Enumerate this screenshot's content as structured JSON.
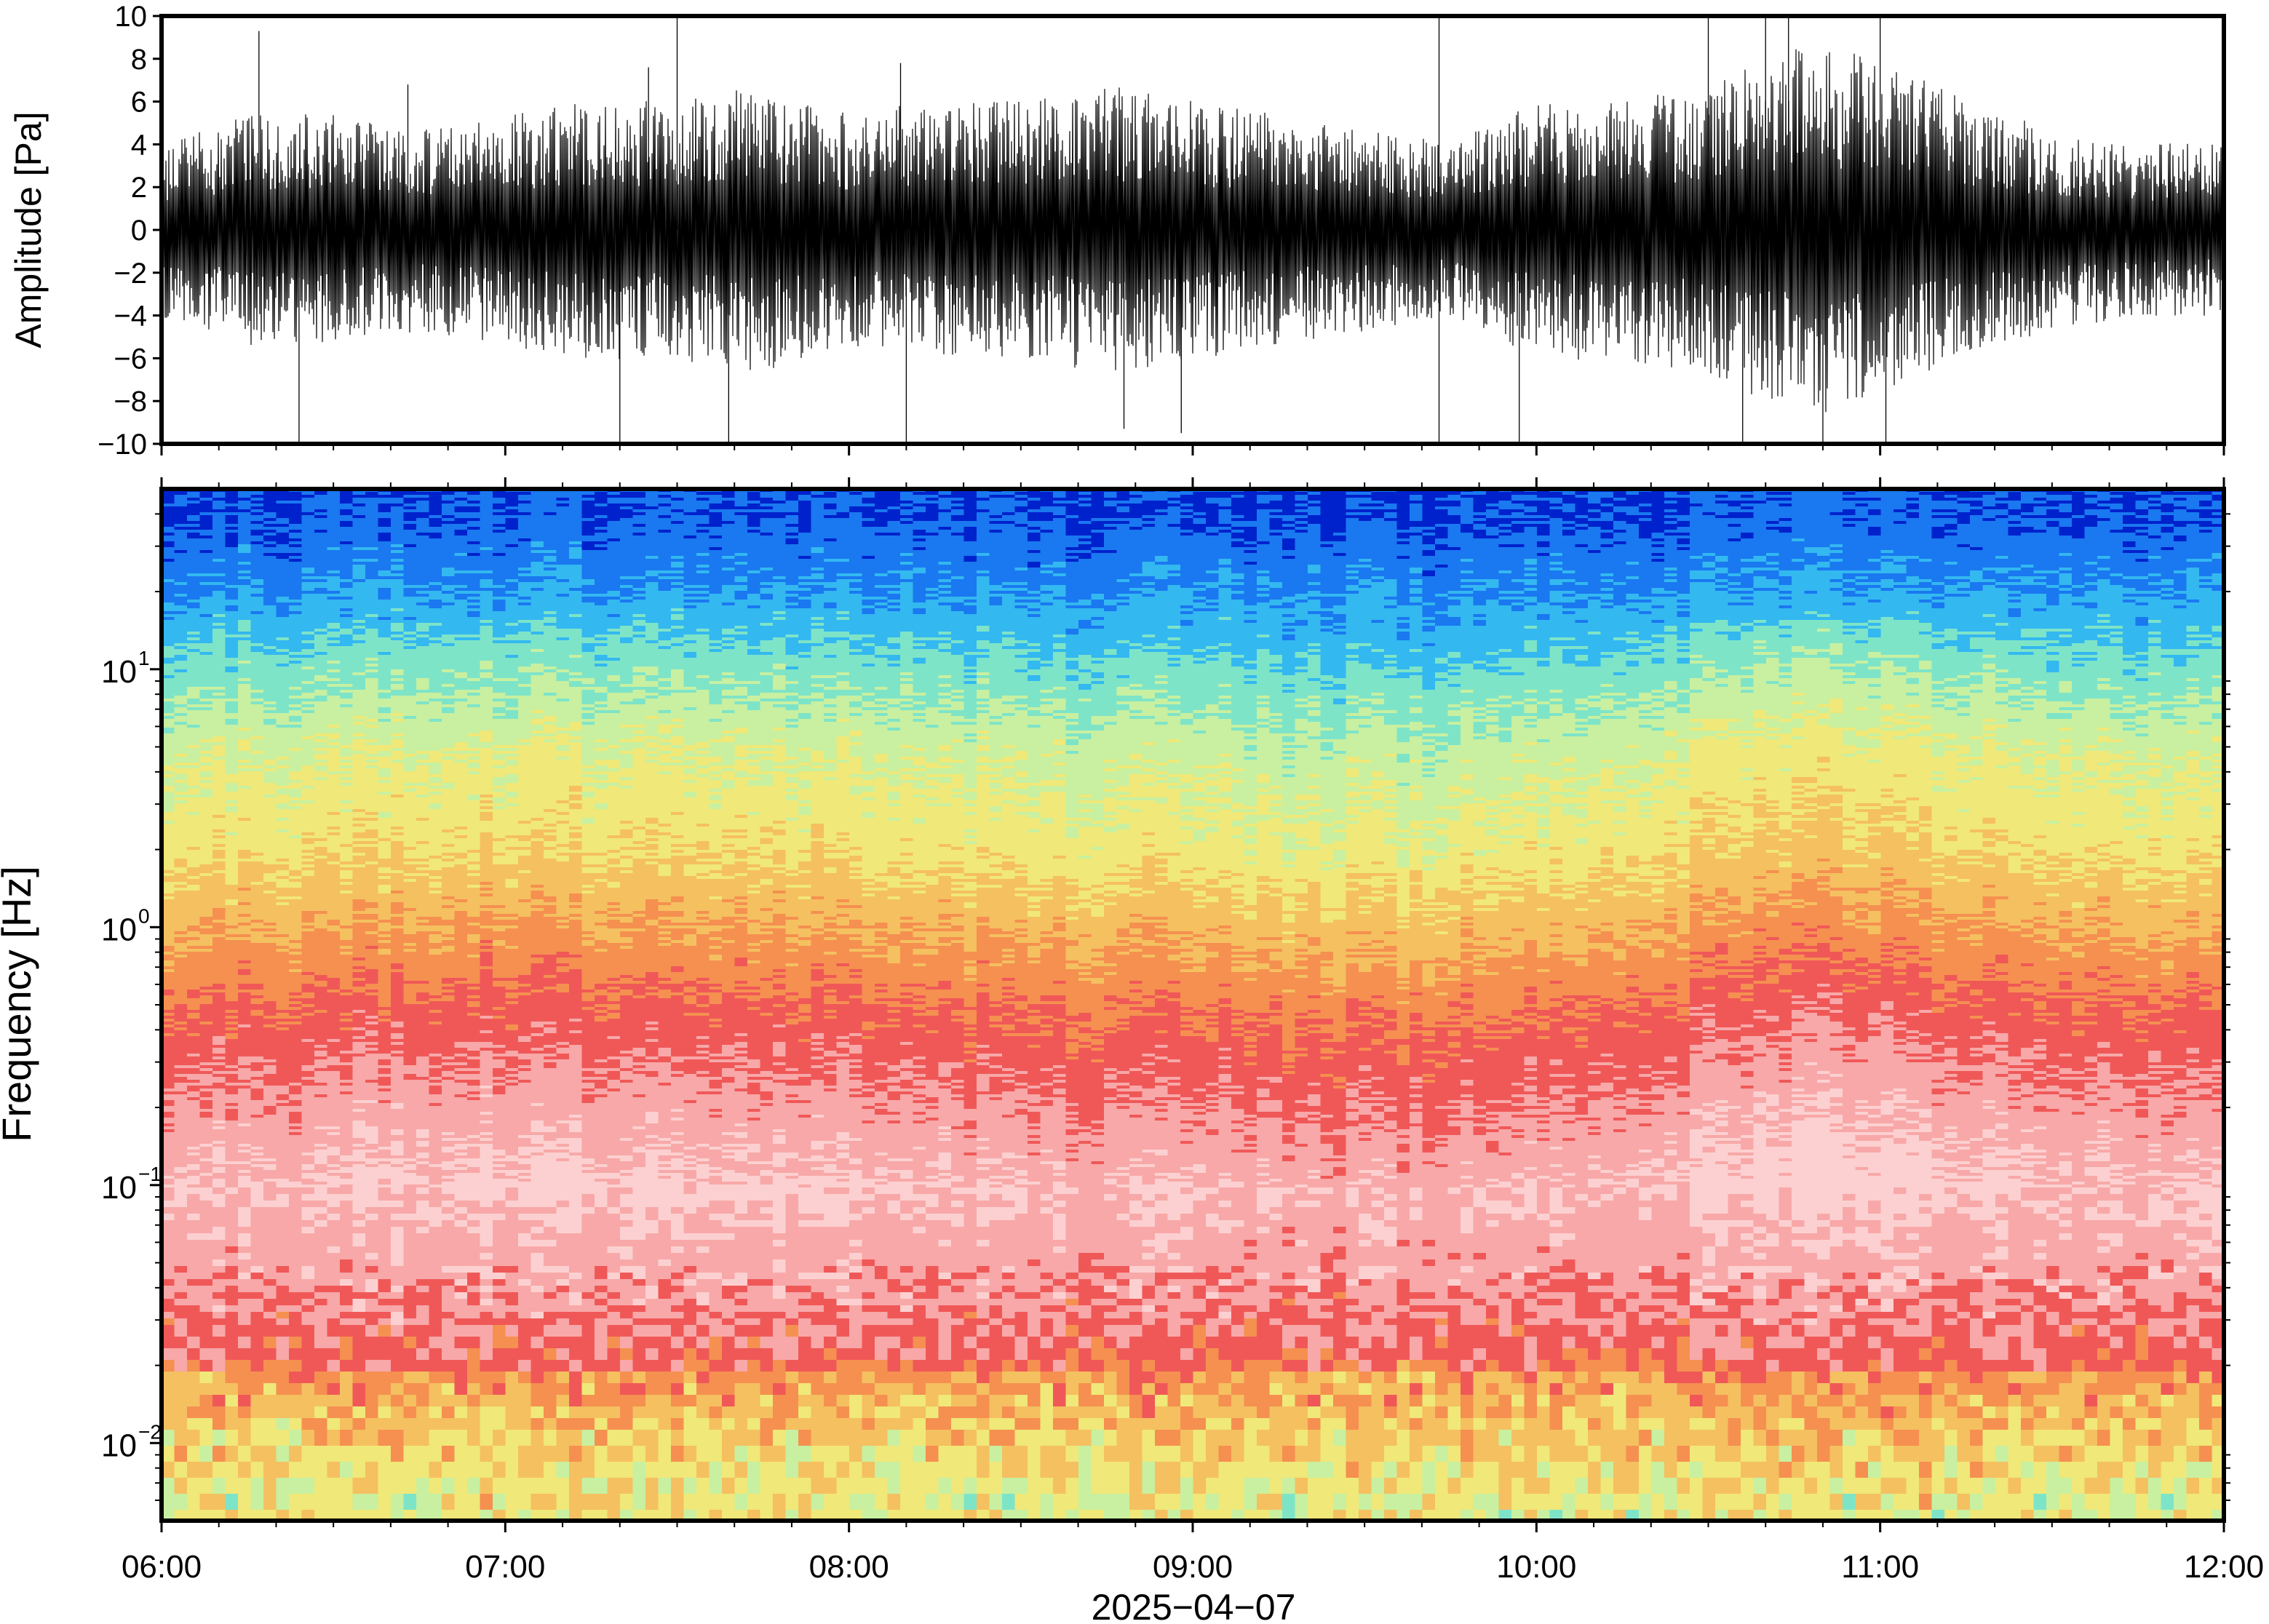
{
  "chart_data": [
    {
      "type": "line",
      "panel": "waveform",
      "ylabel": "Amplitude [Pa]",
      "xlim": [
        "06:00",
        "12:00"
      ],
      "ylim": [
        -10,
        10
      ],
      "yticks": [
        "10",
        "8",
        "6",
        "4",
        "2",
        "0",
        "−2",
        "−4",
        "−6",
        "−8",
        "−10"
      ],
      "envelope": {
        "x": [
          "06:00",
          "06:15",
          "06:30",
          "06:45",
          "07:00",
          "07:15",
          "07:30",
          "07:45",
          "08:00",
          "08:15",
          "08:30",
          "08:45",
          "09:00",
          "09:15",
          "09:30",
          "09:45",
          "10:00",
          "10:15",
          "10:30",
          "10:45",
          "11:00",
          "11:15",
          "11:30",
          "11:45",
          "12:00"
        ],
        "amplitude": [
          3.0,
          4.0,
          4.0,
          3.5,
          4.0,
          4.5,
          4.5,
          5.0,
          4.0,
          4.5,
          4.5,
          5.0,
          4.5,
          4.0,
          3.5,
          3.0,
          4.5,
          4.5,
          5.0,
          6.5,
          6.0,
          4.5,
          3.5,
          3.0,
          3.0
        ]
      },
      "spikes": [
        {
          "x": "06:17",
          "y": 9.3
        },
        {
          "x": "06:24",
          "y": -10
        },
        {
          "x": "06:43",
          "y": 6.8
        },
        {
          "x": "07:20",
          "y": -10
        },
        {
          "x": "07:25",
          "y": 7.6
        },
        {
          "x": "07:30",
          "y": 10
        },
        {
          "x": "07:39",
          "y": -10
        },
        {
          "x": "08:09",
          "y": 7.8
        },
        {
          "x": "08:10",
          "y": -10
        },
        {
          "x": "08:48",
          "y": -9.3
        },
        {
          "x": "08:58",
          "y": -9.5
        },
        {
          "x": "09:43",
          "y": 10
        },
        {
          "x": "09:43",
          "y": -10
        },
        {
          "x": "09:57",
          "y": -10
        },
        {
          "x": "10:30",
          "y": 10
        },
        {
          "x": "10:36",
          "y": -10
        },
        {
          "x": "10:40",
          "y": 10
        },
        {
          "x": "10:44",
          "y": 10
        },
        {
          "x": "10:50",
          "y": -10
        },
        {
          "x": "11:00",
          "y": 10
        },
        {
          "x": "11:01",
          "y": -10
        }
      ]
    },
    {
      "type": "heatmap",
      "panel": "spectrogram",
      "ylabel": "Frequency [Hz]",
      "xlabel": "2025−04−07",
      "xticks": [
        "06:00",
        "07:00",
        "08:00",
        "09:00",
        "10:00",
        "11:00",
        "12:00"
      ],
      "yscale": "log",
      "ylim": [
        0.005,
        50
      ],
      "yticks": [
        {
          "base": "10",
          "exp": "1"
        },
        {
          "base": "10",
          "exp": "0"
        },
        {
          "base": "10",
          "exp": "−1"
        },
        {
          "base": "10",
          "exp": "−2"
        }
      ],
      "colormap": [
        "#0022cc",
        "#1a78f0",
        "#33b8f0",
        "#7ee4c8",
        "#c8f0a0",
        "#f0e878",
        "#f5c060",
        "#f59050",
        "#f05858",
        "#f8a8a8",
        "#fcd0d0"
      ],
      "spectral_profile_hz": [
        40,
        20,
        10,
        5,
        2,
        1,
        0.5,
        0.3,
        0.1,
        0.05,
        0.025,
        0.012,
        0.006
      ],
      "spectral_profile_level": [
        0.5,
        1.5,
        3.0,
        4.3,
        5.2,
        6.4,
        7.6,
        8.3,
        9.6,
        9.0,
        8.2,
        6.5,
        5.5
      ],
      "band_shift": {
        "x": [
          "06:00",
          "07:00",
          "08:00",
          "09:00",
          "09:30",
          "10:00",
          "10:30",
          "10:45",
          "11:00",
          "11:30",
          "12:00"
        ],
        "shift": [
          0.0,
          0.2,
          0.0,
          -0.2,
          -0.4,
          -0.2,
          0.2,
          0.5,
          0.4,
          0.0,
          -0.1
        ]
      }
    }
  ]
}
